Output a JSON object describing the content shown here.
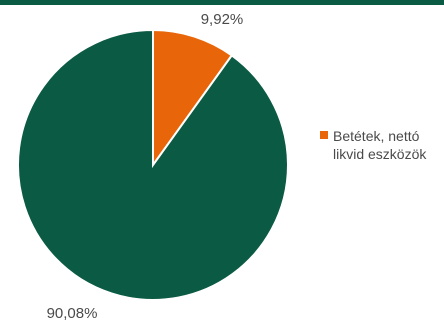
{
  "colors": {
    "accent_bar": "#0b5a43",
    "slice_green": "#0b5a43",
    "slice_orange": "#e8650a"
  },
  "chart_data": {
    "type": "pie",
    "title": "",
    "slices": [
      {
        "name": "Betétek, nettó likvid eszközök",
        "value": 9.92,
        "label": "9,92%",
        "color": "#e8650a"
      },
      {
        "name": "",
        "value": 90.08,
        "label": "90,08%",
        "color": "#0b5a43"
      }
    ],
    "legend": {
      "position": "right",
      "entries": [
        {
          "label": "Betétek, nettó\nlikvid eszközök",
          "color": "#e8650a"
        }
      ]
    }
  }
}
